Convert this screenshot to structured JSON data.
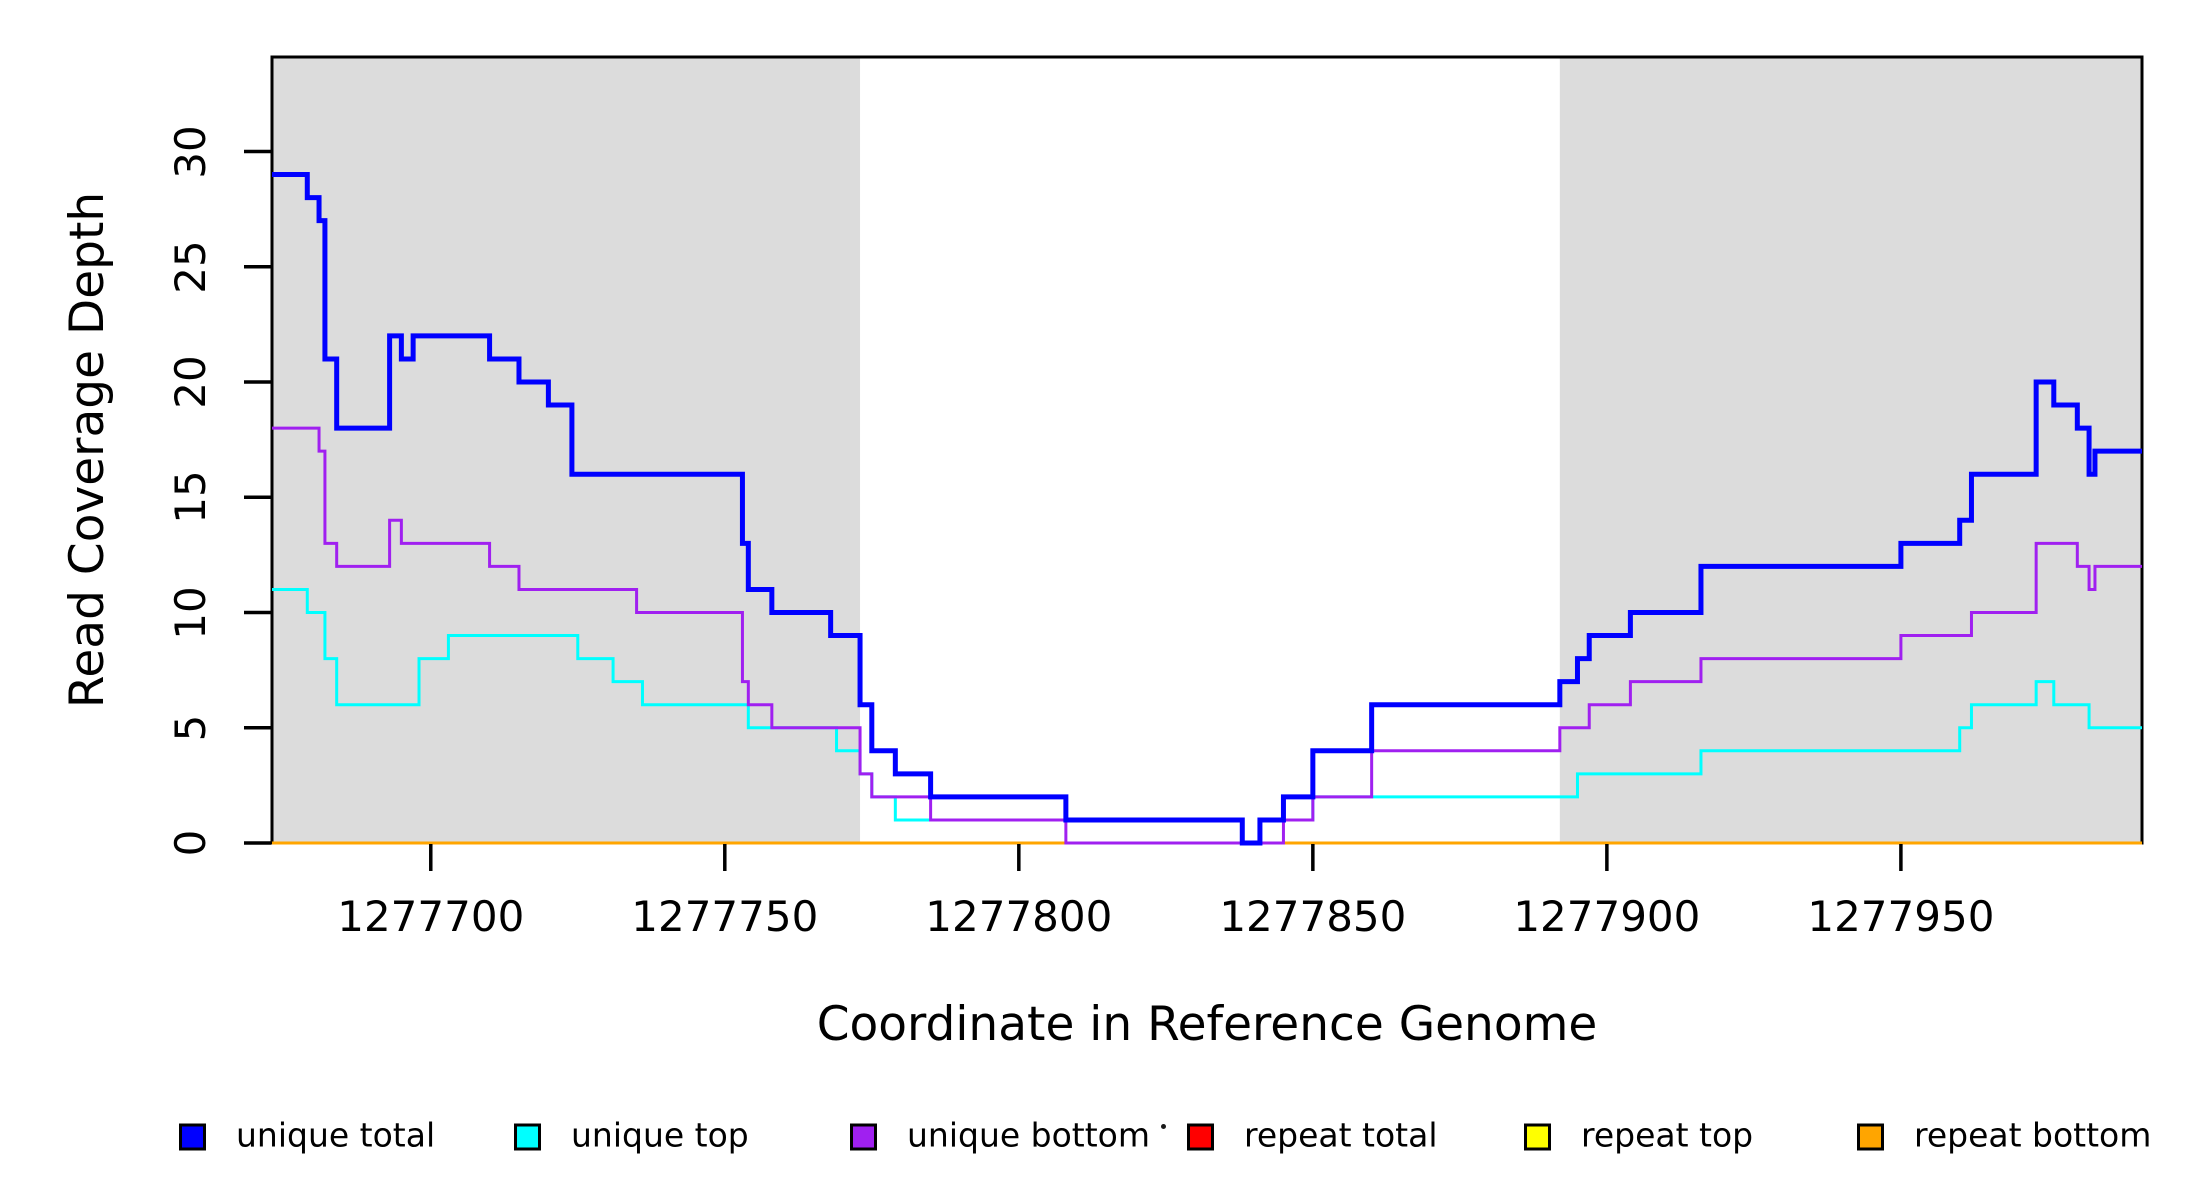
{
  "chart_data": {
    "type": "line",
    "subtype": "step-coverage-plot",
    "title": "",
    "xlabel": "Coordinate in Reference Genome",
    "ylabel": "Read Coverage Depth",
    "x_axis": {
      "min": 1277673,
      "max": 1277991,
      "ticks": [
        {
          "value": 1277700,
          "label": "1277700"
        },
        {
          "value": 1277750,
          "label": "1277750"
        },
        {
          "value": 1277800,
          "label": "1277800"
        },
        {
          "value": 1277850,
          "label": "1277850"
        },
        {
          "value": 1277900,
          "label": "1277900"
        },
        {
          "value": 1277950,
          "label": "1277950"
        }
      ]
    },
    "y_axis": {
      "min": 0,
      "max_visible": 34.1,
      "ticks": [
        {
          "value": 0,
          "label": "0"
        },
        {
          "value": 5,
          "label": "5"
        },
        {
          "value": 10,
          "label": "10"
        },
        {
          "value": 15,
          "label": "15"
        },
        {
          "value": 20,
          "label": "20"
        },
        {
          "value": 25,
          "label": "25"
        },
        {
          "value": 30,
          "label": "30"
        }
      ]
    },
    "grid": false,
    "plot_background": "#ffffff",
    "shaded_regions": [
      {
        "from": 1277673,
        "to": 1277773,
        "color": "#DCDCDC"
      },
      {
        "from": 1277892,
        "to": 1277991,
        "color": "#DCDCDC"
      }
    ],
    "series": [
      {
        "name": "repeat total",
        "color": "#FF0000",
        "line_width": 3,
        "breakpoints": [
          [
            1277673,
            0
          ]
        ]
      },
      {
        "name": "repeat top",
        "color": "#FFFF00",
        "line_width": 3,
        "breakpoints": [
          [
            1277673,
            0
          ]
        ]
      },
      {
        "name": "repeat bottom",
        "color": "#FFA500",
        "line_width": 3,
        "breakpoints": [
          [
            1277673,
            0
          ]
        ]
      },
      {
        "name": "unique top",
        "color": "#00FFFF",
        "line_width": 3,
        "breakpoints": [
          [
            1277673,
            11
          ],
          [
            1277679,
            10
          ],
          [
            1277682,
            8
          ],
          [
            1277684,
            6
          ],
          [
            1277698,
            8
          ],
          [
            1277703,
            9
          ],
          [
            1277725,
            8
          ],
          [
            1277731,
            7
          ],
          [
            1277736,
            6
          ],
          [
            1277754,
            5
          ],
          [
            1277769,
            4
          ],
          [
            1277773,
            3
          ],
          [
            1277775,
            2
          ],
          [
            1277779,
            1
          ],
          [
            1277838,
            0
          ],
          [
            1277841,
            1
          ],
          [
            1277850,
            2
          ],
          [
            1277895,
            3
          ],
          [
            1277916,
            4
          ],
          [
            1277960,
            5
          ],
          [
            1277962,
            6
          ],
          [
            1277973,
            7
          ],
          [
            1277976,
            6
          ],
          [
            1277982,
            5
          ]
        ]
      },
      {
        "name": "unique bottom",
        "color": "#A020F0",
        "line_width": 3,
        "breakpoints": [
          [
            1277673,
            18
          ],
          [
            1277681,
            17
          ],
          [
            1277682,
            13
          ],
          [
            1277684,
            12
          ],
          [
            1277693,
            14
          ],
          [
            1277695,
            13
          ],
          [
            1277710,
            12
          ],
          [
            1277715,
            11
          ],
          [
            1277735,
            10
          ],
          [
            1277753,
            7
          ],
          [
            1277754,
            6
          ],
          [
            1277758,
            5
          ],
          [
            1277773,
            3
          ],
          [
            1277775,
            2
          ],
          [
            1277785,
            1
          ],
          [
            1277808,
            0
          ],
          [
            1277845,
            1
          ],
          [
            1277850,
            2
          ],
          [
            1277860,
            4
          ],
          [
            1277892,
            5
          ],
          [
            1277897,
            6
          ],
          [
            1277904,
            7
          ],
          [
            1277916,
            8
          ],
          [
            1277950,
            9
          ],
          [
            1277962,
            10
          ],
          [
            1277973,
            13
          ],
          [
            1277980,
            12
          ],
          [
            1277982,
            11
          ],
          [
            1277983,
            12
          ]
        ]
      },
      {
        "name": "unique total",
        "color": "#0000FF",
        "line_width": 5,
        "breakpoints": [
          [
            1277673,
            29
          ],
          [
            1277679,
            28
          ],
          [
            1277681,
            27
          ],
          [
            1277682,
            21
          ],
          [
            1277684,
            18
          ],
          [
            1277693,
            22
          ],
          [
            1277695,
            21
          ],
          [
            1277697,
            22
          ],
          [
            1277710,
            21
          ],
          [
            1277715,
            20
          ],
          [
            1277720,
            19
          ],
          [
            1277724,
            16
          ],
          [
            1277753,
            13
          ],
          [
            1277754,
            11
          ],
          [
            1277758,
            10
          ],
          [
            1277768,
            9
          ],
          [
            1277773,
            6
          ],
          [
            1277775,
            4
          ],
          [
            1277779,
            3
          ],
          [
            1277785,
            2
          ],
          [
            1277808,
            1
          ],
          [
            1277838,
            0
          ],
          [
            1277841,
            1
          ],
          [
            1277845,
            2
          ],
          [
            1277850,
            4
          ],
          [
            1277860,
            6
          ],
          [
            1277892,
            7
          ],
          [
            1277895,
            8
          ],
          [
            1277897,
            9
          ],
          [
            1277904,
            10
          ],
          [
            1277916,
            12
          ],
          [
            1277950,
            13
          ],
          [
            1277960,
            14
          ],
          [
            1277962,
            16
          ],
          [
            1277973,
            20
          ],
          [
            1277976,
            19
          ],
          [
            1277980,
            18
          ],
          [
            1277982,
            16
          ],
          [
            1277983,
            17
          ]
        ]
      }
    ],
    "legend": {
      "position": "bottom",
      "items": [
        {
          "label": "unique total",
          "color": "#0000FF"
        },
        {
          "label": "unique top",
          "color": "#00FFFF"
        },
        {
          "label": "unique bottom",
          "color": "#A020F0"
        },
        {
          "label": "repeat total",
          "color": "#FF0000"
        },
        {
          "label": "repeat top",
          "color": "#FFFF00"
        },
        {
          "label": "repeat bottom",
          "color": "#FFA500"
        }
      ]
    }
  }
}
